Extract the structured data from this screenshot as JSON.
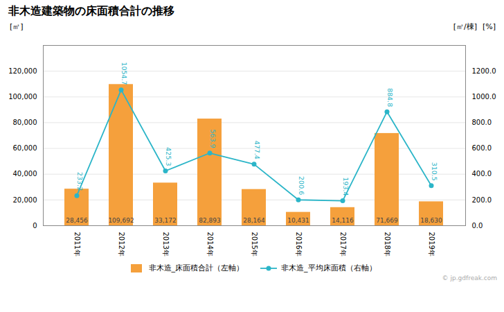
{
  "chart_data": {
    "type": "bar",
    "title": "非木造建築物の床面積合計の推移",
    "categories": [
      "2011年",
      "2012年",
      "2013年",
      "2014年",
      "2015年",
      "2016年",
      "2017年",
      "2018年",
      "2019年"
    ],
    "ylabel": "[㎡]",
    "y2label": "[㎡/棟]",
    "annotations": [
      "[%]",
      "© jp.gdfreak.com"
    ],
    "series": [
      {
        "name": "非木造_床面積合計（左軸）",
        "type": "bar",
        "color": "#F5A03C",
        "values": [
          28456,
          109692,
          33172,
          82893,
          28164,
          10431,
          14116,
          71669,
          18630
        ],
        "value_labels": [
          "28,456",
          "109,692",
          "33,172",
          "82,893",
          "28,164",
          "10,431",
          "14,116",
          "71,669",
          "18,630"
        ],
        "data_labels": true
      },
      {
        "name": "非木造_平均床面積（右軸）",
        "type": "line",
        "axis": "y2",
        "color": "#2BB5C8",
        "marker": "circle",
        "values": [
          233.2,
          1054.7,
          425.3,
          563.9,
          477.4,
          200.6,
          193.4,
          884.8,
          310.5
        ],
        "data_labels": true
      }
    ],
    "ylim": [
      0,
      140000
    ],
    "yticks": [
      0,
      {
        "value": 20000,
        "label": "20,000"
      },
      {
        "value": 40000,
        "label": "40,000"
      },
      {
        "value": 60000,
        "label": "60,000"
      },
      {
        "value": 80000,
        "label": "80,000"
      },
      {
        "value": 100000,
        "label": "100,000"
      },
      {
        "value": 120000,
        "label": "120,000"
      }
    ],
    "y2lim": [
      0,
      1400
    ],
    "y2ticks": [
      {
        "value": 0,
        "label": "0.0"
      },
      {
        "value": 200,
        "label": "200.0"
      },
      {
        "value": 400,
        "label": "400.0"
      },
      {
        "value": 600,
        "label": "600.0"
      },
      {
        "value": 800,
        "label": "800.0"
      },
      {
        "value": 1000,
        "label": "1000.0"
      },
      {
        "value": 1200,
        "label": "1200.0"
      }
    ],
    "grid": true,
    "legend": "bottom"
  }
}
